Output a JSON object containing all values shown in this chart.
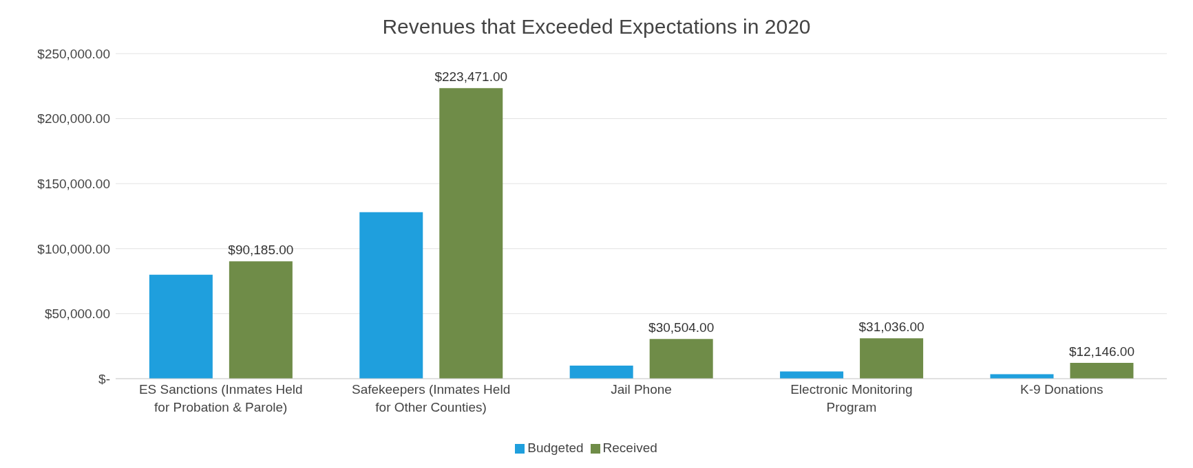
{
  "chart_data": {
    "type": "bar",
    "title": "Revenues that Exceeded Expectations in 2020",
    "categories": [
      "ES Sanctions (Inmates Held for Probation & Parole)",
      "Safekeepers (Inmates Held for Other Counties)",
      "Jail Phone",
      "Electronic Monitoring Program",
      "K-9 Donations"
    ],
    "series": [
      {
        "name": "Budgeted",
        "color": "#1f9fdd",
        "values": [
          80000,
          128000,
          10000,
          5500,
          3500
        ]
      },
      {
        "name": "Received",
        "color": "#6f8c48",
        "values": [
          90185,
          223471,
          30504,
          31036,
          12146
        ],
        "value_labels": [
          "$90,185.00",
          "$223,471.00",
          "$30,504.00",
          "$31,036.00",
          "$12,146.00"
        ]
      }
    ],
    "ylim": [
      0,
      250000
    ],
    "yticks": [
      {
        "value": 0,
        "label": "$-"
      },
      {
        "value": 50000,
        "label": "$50,000.00"
      },
      {
        "value": 100000,
        "label": "$100,000.00"
      },
      {
        "value": 150000,
        "label": "$150,000.00"
      },
      {
        "value": 200000,
        "label": "$200,000.00"
      },
      {
        "value": 250000,
        "label": "$250,000.00"
      }
    ],
    "grid": "y",
    "legend": "bottom"
  }
}
